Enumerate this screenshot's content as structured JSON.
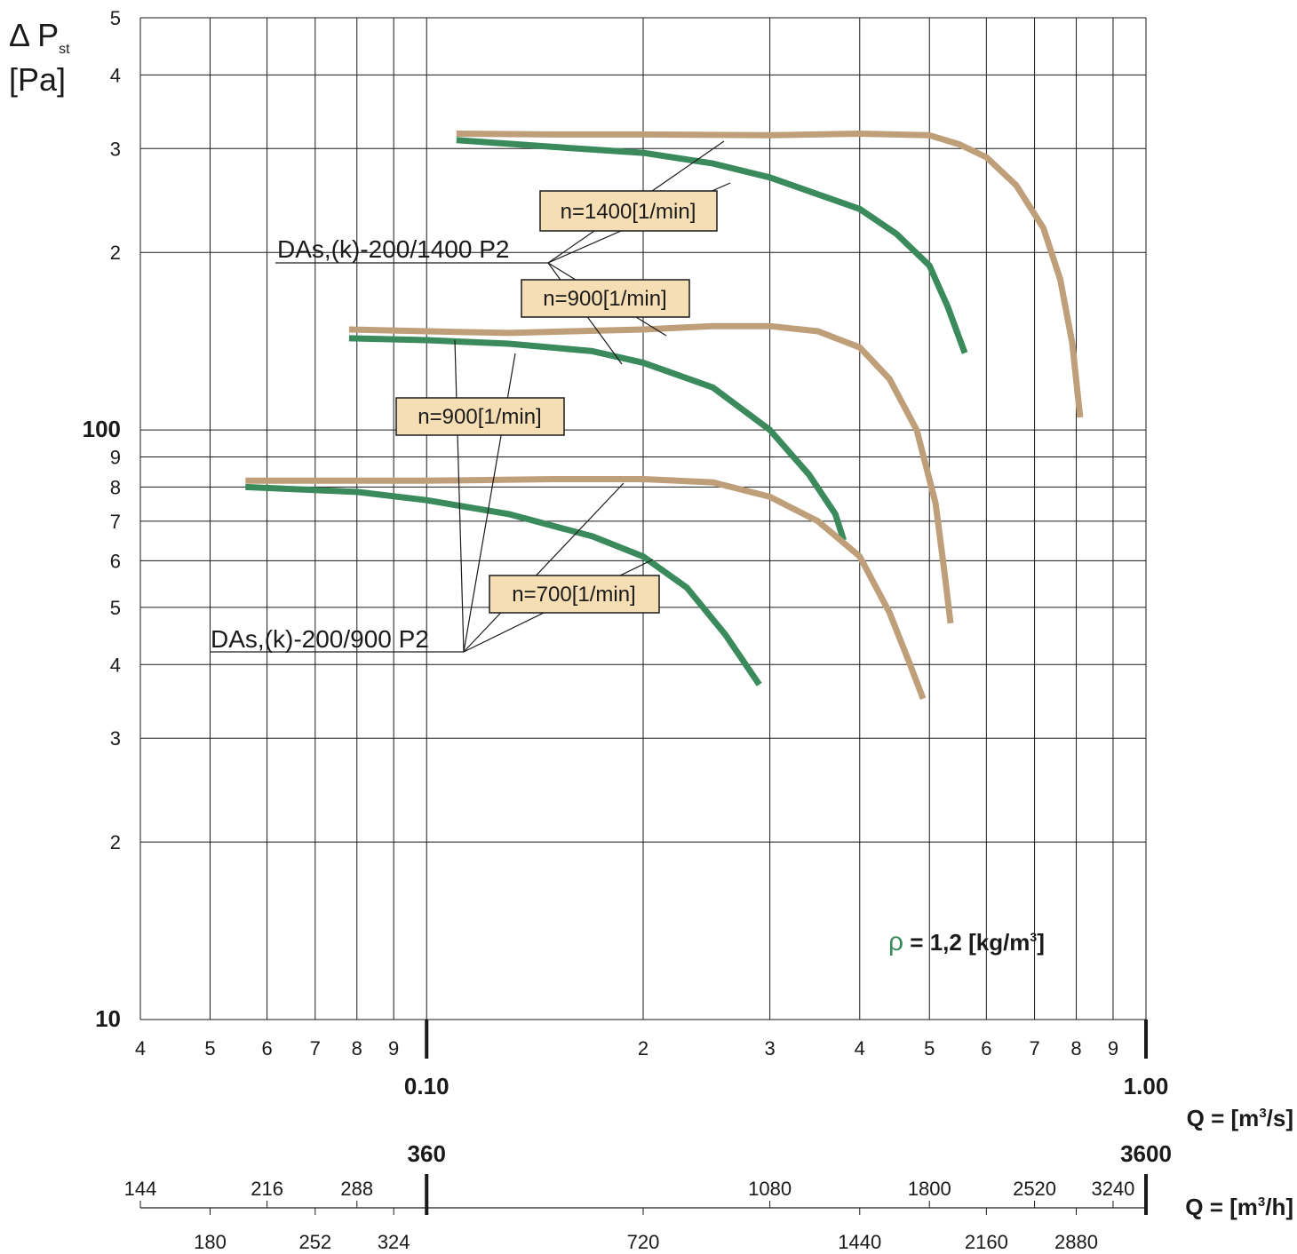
{
  "chart_data": {
    "type": "line",
    "x_scale": "log",
    "y_scale": "log",
    "xlim": [
      0.04,
      1.0
    ],
    "ylim": [
      10,
      500
    ],
    "grid": true,
    "y_axis_label": {
      "symbol": "Δ P",
      "subscript": "st",
      "unit": "[Pa]"
    },
    "y_ticks": [
      {
        "v": 10,
        "t": "10",
        "bold": true
      },
      {
        "v": 20,
        "t": "2"
      },
      {
        "v": 30,
        "t": "3"
      },
      {
        "v": 40,
        "t": "4"
      },
      {
        "v": 50,
        "t": "5"
      },
      {
        "v": 60,
        "t": "6"
      },
      {
        "v": 70,
        "t": "7"
      },
      {
        "v": 80,
        "t": "8"
      },
      {
        "v": 90,
        "t": "9"
      },
      {
        "v": 100,
        "t": "100",
        "bold": true
      },
      {
        "v": 200,
        "t": "2"
      },
      {
        "v": 300,
        "t": "3"
      },
      {
        "v": 400,
        "t": "4"
      },
      {
        "v": 500,
        "t": "5"
      }
    ],
    "x_ticks": [
      {
        "v": 0.04,
        "t": "4"
      },
      {
        "v": 0.05,
        "t": "5"
      },
      {
        "v": 0.06,
        "t": "6"
      },
      {
        "v": 0.07,
        "t": "7"
      },
      {
        "v": 0.08,
        "t": "8"
      },
      {
        "v": 0.09,
        "t": "9"
      },
      {
        "v": 0.2,
        "t": "2"
      },
      {
        "v": 0.3,
        "t": "3"
      },
      {
        "v": 0.4,
        "t": "4"
      },
      {
        "v": 0.5,
        "t": "5"
      },
      {
        "v": 0.6,
        "t": "6"
      },
      {
        "v": 0.7,
        "t": "7"
      },
      {
        "v": 0.8,
        "t": "8"
      },
      {
        "v": 0.9,
        "t": "9"
      }
    ],
    "x_decades": [
      {
        "v": 0.1,
        "t": "0.10",
        "h": "360"
      },
      {
        "v": 1.0,
        "t": "1.00",
        "h": "3600"
      }
    ],
    "x_axis_label": {
      "prefix": "Q = [m",
      "sup": "3",
      "suffix": "/s]"
    },
    "x2_axis_label": {
      "prefix": "Q = [m",
      "sup": "3",
      "suffix": "/h]"
    },
    "x2_ticks_upper": [
      {
        "v": 0.04,
        "t": "144"
      },
      {
        "v": 0.06,
        "t": "216"
      },
      {
        "v": 0.08,
        "t": "288"
      },
      {
        "v": 0.3,
        "t": "1080"
      },
      {
        "v": 0.5,
        "t": "1800"
      },
      {
        "v": 0.7,
        "t": "2520"
      },
      {
        "v": 0.9,
        "t": "3240"
      }
    ],
    "x2_ticks_lower": [
      {
        "v": 0.05,
        "t": "180"
      },
      {
        "v": 0.07,
        "t": "252"
      },
      {
        "v": 0.09,
        "t": "324"
      },
      {
        "v": 0.2,
        "t": "720"
      },
      {
        "v": 0.4,
        "t": "1440"
      },
      {
        "v": 0.6,
        "t": "2160"
      },
      {
        "v": 0.8,
        "t": "2880"
      }
    ],
    "density_note": {
      "symbol": "ρ",
      "text": " = 1,2 [kg/m",
      "sup": "3",
      "tail": "]"
    },
    "colors": {
      "model_1400": "#bf9f7a",
      "model_900": "#3a8a5c",
      "label_fill": "#f5deb3"
    },
    "series": [
      {
        "model": "DAs,(k)-200/1400 P2",
        "rpm": "n=1400[1/min]",
        "color_key": "model_1400",
        "points": [
          [
            0.11,
            318
          ],
          [
            0.15,
            317
          ],
          [
            0.2,
            317
          ],
          [
            0.3,
            316
          ],
          [
            0.4,
            318
          ],
          [
            0.5,
            316
          ],
          [
            0.55,
            305
          ],
          [
            0.6,
            290
          ],
          [
            0.66,
            260
          ],
          [
            0.72,
            220
          ],
          [
            0.76,
            180
          ],
          [
            0.79,
            140
          ],
          [
            0.81,
            105
          ]
        ]
      },
      {
        "model": "DAs,(k)-200/900 P2",
        "rpm": "n=1400[1/min]",
        "color_key": "model_900",
        "points": [
          [
            0.11,
            310
          ],
          [
            0.15,
            302
          ],
          [
            0.2,
            295
          ],
          [
            0.25,
            283
          ],
          [
            0.3,
            268
          ],
          [
            0.4,
            237
          ],
          [
            0.45,
            215
          ],
          [
            0.5,
            190
          ],
          [
            0.53,
            162
          ],
          [
            0.56,
            135
          ]
        ]
      },
      {
        "model": "DAs,(k)-200/1400 P2",
        "rpm": "n=900[1/min]",
        "color_key": "model_1400",
        "points": [
          [
            0.078,
            148
          ],
          [
            0.1,
            147
          ],
          [
            0.13,
            146
          ],
          [
            0.2,
            148
          ],
          [
            0.25,
            150
          ],
          [
            0.3,
            150
          ],
          [
            0.35,
            147
          ],
          [
            0.4,
            138
          ],
          [
            0.44,
            122
          ],
          [
            0.48,
            100
          ],
          [
            0.51,
            75
          ],
          [
            0.525,
            57
          ],
          [
            0.535,
            47
          ]
        ]
      },
      {
        "model": "DAs,(k)-200/900 P2",
        "rpm": "n=900[1/min]",
        "color_key": "model_900",
        "points": [
          [
            0.078,
            143
          ],
          [
            0.1,
            142
          ],
          [
            0.13,
            140
          ],
          [
            0.17,
            136
          ],
          [
            0.2,
            130
          ],
          [
            0.25,
            118
          ],
          [
            0.3,
            100
          ],
          [
            0.34,
            84
          ],
          [
            0.37,
            72
          ],
          [
            0.38,
            65
          ]
        ]
      },
      {
        "model": "DAs,(k)-200/1400 P2",
        "rpm": "n=700[1/min]",
        "color_key": "model_1400",
        "points": [
          [
            0.056,
            82
          ],
          [
            0.08,
            82
          ],
          [
            0.1,
            82
          ],
          [
            0.15,
            82.5
          ],
          [
            0.2,
            82.5
          ],
          [
            0.25,
            81.5
          ],
          [
            0.3,
            77
          ],
          [
            0.35,
            70
          ],
          [
            0.4,
            61
          ],
          [
            0.44,
            49
          ],
          [
            0.47,
            40
          ],
          [
            0.49,
            35
          ]
        ]
      },
      {
        "model": "DAs,(k)-200/900 P2",
        "rpm": "n=700[1/min]",
        "color_key": "model_900",
        "points": [
          [
            0.056,
            80
          ],
          [
            0.08,
            78.5
          ],
          [
            0.1,
            76
          ],
          [
            0.13,
            72
          ],
          [
            0.17,
            66
          ],
          [
            0.2,
            61
          ],
          [
            0.23,
            54
          ],
          [
            0.26,
            45
          ],
          [
            0.29,
            37
          ]
        ]
      }
    ],
    "annotations": {
      "model_labels": [
        "DAs,(k)-200/1400 P2",
        "DAs,(k)-200/900 P2"
      ],
      "speed_boxes": [
        "n=1400[1/min]",
        "n=900[1/min]",
        "n=900[1/min]",
        "n=700[1/min]"
      ]
    }
  }
}
